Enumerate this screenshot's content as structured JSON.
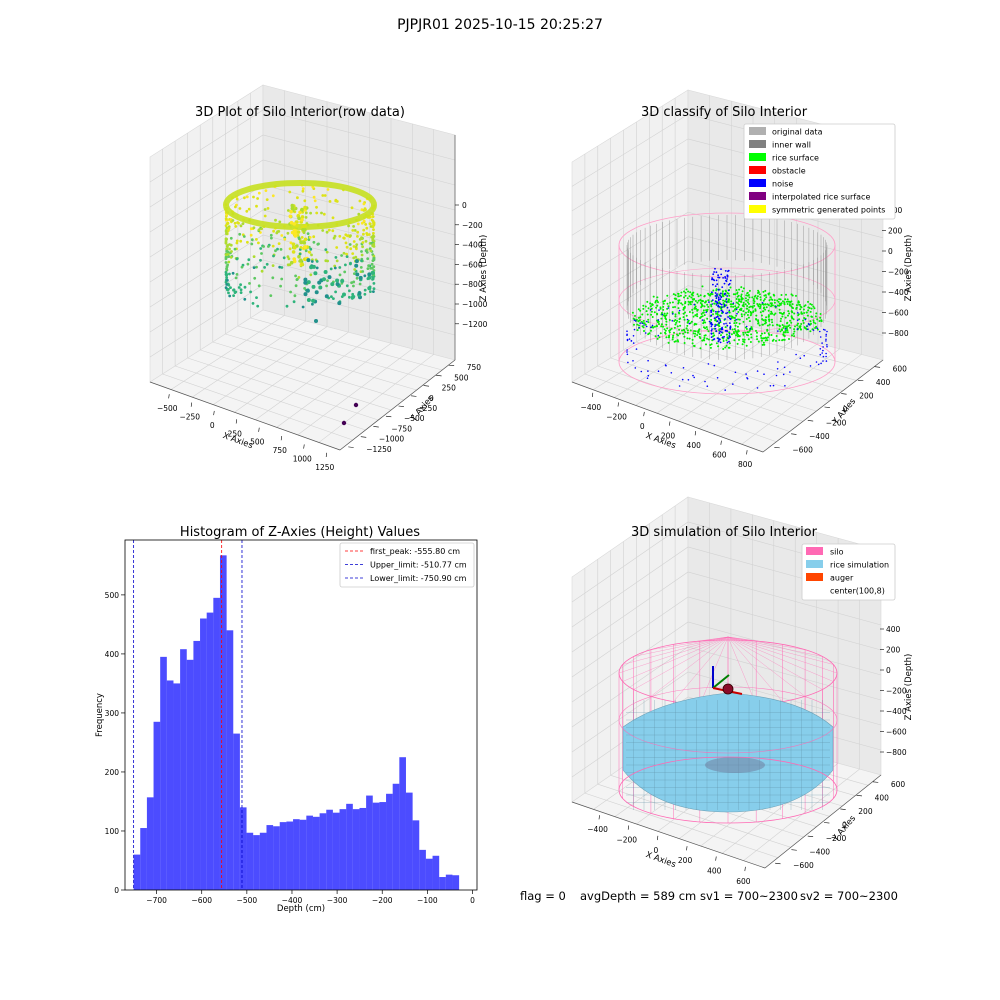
{
  "figure": {
    "suptitle": "PJPJR01 2025-10-15 20:25:27",
    "status_line": {
      "flag": "flag = 0",
      "avg_depth": "avgDepth = 589 cm",
      "sv1": "sv1 = 700~2300",
      "sv2": "sv2 = 700~2300"
    }
  },
  "chart_data": [
    {
      "type": "scatter3d",
      "title": "3D Plot of Silo Interior(row data)",
      "xlabel": "X Axies",
      "ylabel": "Y Axies",
      "zlabel": "Z Axies (Depth)",
      "x_ticks": [
        "−500",
        "−250",
        "0",
        "250",
        "500",
        "750",
        "1000",
        "1250"
      ],
      "y_ticks": [
        "750",
        "500",
        "250",
        "0",
        "−250",
        "−500",
        "−750",
        "−1000",
        "−1250"
      ],
      "z_ticks": [
        "0",
        "−200",
        "−400",
        "−600",
        "−800",
        "−1000",
        "−1200"
      ],
      "colormap": "viridis",
      "grid": true
    },
    {
      "type": "scatter3d",
      "title": "3D classify of Silo Interior",
      "xlabel": "X Axies",
      "ylabel": "Y Axies",
      "zlabel": "Z Axies (Depth)",
      "x_ticks": [
        "−400",
        "−200",
        "0",
        "200",
        "400",
        "600",
        "800"
      ],
      "y_ticks": [
        "600",
        "400",
        "200",
        "0",
        "−200",
        "−400",
        "−600"
      ],
      "z_ticks": [
        "400",
        "200",
        "0",
        "−200",
        "−400",
        "−600",
        "−800"
      ],
      "legend": [
        {
          "label": "original data",
          "color": "#b0b0b0"
        },
        {
          "label": "inner wall",
          "color": "#808080"
        },
        {
          "label": "rice surface",
          "color": "#00ff00"
        },
        {
          "label": "obstacle",
          "color": "#ff0000"
        },
        {
          "label": "noise",
          "color": "#0000ff"
        },
        {
          "label": "interpolated rice surface",
          "color": "#800080"
        },
        {
          "label": "symmetric generated points",
          "color": "#ffff00"
        }
      ],
      "legend_loc": "upper right",
      "grid": true
    },
    {
      "type": "bar",
      "title": "Histogram of Z-Axies (Height) Values",
      "xlabel": "Depth (cm)",
      "ylabel": "Frequency",
      "xlim": [
        -770,
        10
      ],
      "ylim": [
        0,
        593
      ],
      "x_ticks": [
        -700,
        -600,
        -500,
        -400,
        -300,
        -200,
        -100,
        0
      ],
      "x_tick_labels": [
        "−700",
        "−600",
        "−500",
        "−400",
        "−300",
        "−200",
        "−100",
        "0"
      ],
      "y_ticks": [
        0,
        100,
        200,
        300,
        400,
        500
      ],
      "bin_edges_start": -750.9,
      "bin_width": 14.72,
      "values": [
        60,
        105,
        157,
        285,
        395,
        355,
        350,
        408,
        390,
        422,
        460,
        470,
        495,
        567,
        440,
        265,
        140,
        97,
        93,
        97,
        110,
        108,
        115,
        116,
        120,
        119,
        126,
        124,
        130,
        136,
        131,
        137,
        146,
        137,
        139,
        160,
        148,
        149,
        163,
        180,
        225,
        165,
        118,
        68,
        53,
        58,
        22,
        26,
        25
      ],
      "bar_color": "#0000ff",
      "bar_alpha": 0.7,
      "vlines": [
        {
          "x": -555.8,
          "color": "#ff0000",
          "label": "first_peak: -555.80 cm"
        },
        {
          "x": -510.77,
          "color": "#0000cc",
          "label": "Upper_limit: -510.77 cm"
        },
        {
          "x": -750.9,
          "color": "#0000cc",
          "label": "Lower_limit: -750.90 cm"
        }
      ],
      "legend_loc": "upper right",
      "grid": false
    },
    {
      "type": "surface3d",
      "title": "3D simulation of Silo Interior",
      "xlabel": "X Axies",
      "ylabel": "Y Axies",
      "zlabel": "Z Axies (Depth)",
      "x_ticks": [
        "−400",
        "−200",
        "0",
        "200",
        "400",
        "600"
      ],
      "y_ticks": [
        "600",
        "400",
        "200",
        "0",
        "−200",
        "−400",
        "−600"
      ],
      "z_ticks": [
        "400",
        "200",
        "0",
        "−200",
        "−400",
        "−600",
        "−800"
      ],
      "legend": [
        {
          "label": "silo",
          "color": "#ff69b4"
        },
        {
          "label": "rice simulation",
          "color": "#87ceeb"
        },
        {
          "label": "auger",
          "color": "#ff4500"
        },
        {
          "label": "center(100,8)",
          "color": "#ffffff"
        }
      ],
      "legend_loc": "upper right",
      "grid": true
    }
  ]
}
